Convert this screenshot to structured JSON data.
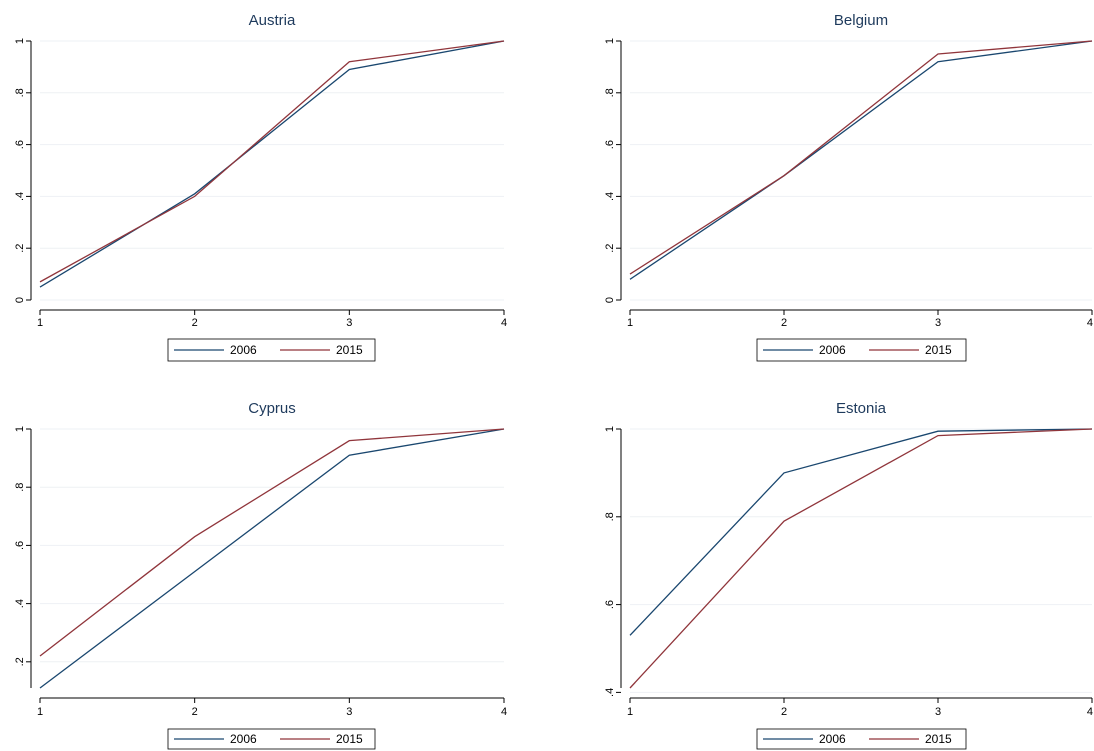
{
  "chart_data": [
    {
      "type": "line",
      "title": "Austria",
      "x": [
        1,
        2,
        3,
        4
      ],
      "xlim": [
        1,
        4
      ],
      "ylim": [
        0,
        1
      ],
      "yticks": [
        0,
        0.2,
        0.4,
        0.6,
        0.8,
        1
      ],
      "ytick_labels": [
        "0",
        ".2",
        ".4",
        ".6",
        ".8",
        "1"
      ],
      "xtick_labels": [
        "1",
        "2",
        "3",
        "4"
      ],
      "series": [
        {
          "name": "2006",
          "color": "#1a476f",
          "values": [
            0.05,
            0.41,
            0.89,
            1.0
          ]
        },
        {
          "name": "2015",
          "color": "#90353b",
          "values": [
            0.07,
            0.4,
            0.92,
            1.0
          ]
        }
      ],
      "grid": true,
      "legend_position": "bottom"
    },
    {
      "type": "line",
      "title": "Belgium",
      "x": [
        1,
        2,
        3,
        4
      ],
      "xlim": [
        1,
        4
      ],
      "ylim": [
        0,
        1
      ],
      "yticks": [
        0,
        0.2,
        0.4,
        0.6,
        0.8,
        1
      ],
      "ytick_labels": [
        "0",
        ".2",
        ".4",
        ".6",
        ".8",
        "1"
      ],
      "xtick_labels": [
        "1",
        "2",
        "3",
        "4"
      ],
      "series": [
        {
          "name": "2006",
          "color": "#1a476f",
          "values": [
            0.08,
            0.48,
            0.92,
            1.0
          ]
        },
        {
          "name": "2015",
          "color": "#90353b",
          "values": [
            0.1,
            0.48,
            0.95,
            1.0
          ]
        }
      ],
      "grid": true,
      "legend_position": "bottom"
    },
    {
      "type": "line",
      "title": "Cyprus",
      "x": [
        1,
        2,
        3,
        4
      ],
      "xlim": [
        1,
        4
      ],
      "ylim": [
        0.11,
        1
      ],
      "yticks": [
        0.2,
        0.4,
        0.6,
        0.8,
        1
      ],
      "ytick_labels": [
        ".2",
        ".4",
        ".6",
        ".8",
        "1"
      ],
      "xtick_labels": [
        "1",
        "2",
        "3",
        "4"
      ],
      "series": [
        {
          "name": "2006",
          "color": "#1a476f",
          "values": [
            0.11,
            0.51,
            0.91,
            1.0
          ]
        },
        {
          "name": "2015",
          "color": "#90353b",
          "values": [
            0.22,
            0.63,
            0.96,
            1.0
          ]
        }
      ],
      "grid": true,
      "legend_position": "bottom"
    },
    {
      "type": "line",
      "title": "Estonia",
      "x": [
        1,
        2,
        3,
        4
      ],
      "xlim": [
        1,
        4
      ],
      "ylim": [
        0.41,
        1
      ],
      "yticks": [
        0.4,
        0.6,
        0.8,
        1
      ],
      "ytick_labels": [
        ".4",
        ".6",
        ".8",
        "1"
      ],
      "xtick_labels": [
        "1",
        "2",
        "3",
        "4"
      ],
      "series": [
        {
          "name": "2006",
          "color": "#1a476f",
          "values": [
            0.53,
            0.9,
            0.995,
            1.0
          ]
        },
        {
          "name": "2015",
          "color": "#90353b",
          "values": [
            0.41,
            0.79,
            0.985,
            1.0
          ]
        }
      ],
      "grid": true,
      "legend_position": "bottom"
    }
  ]
}
